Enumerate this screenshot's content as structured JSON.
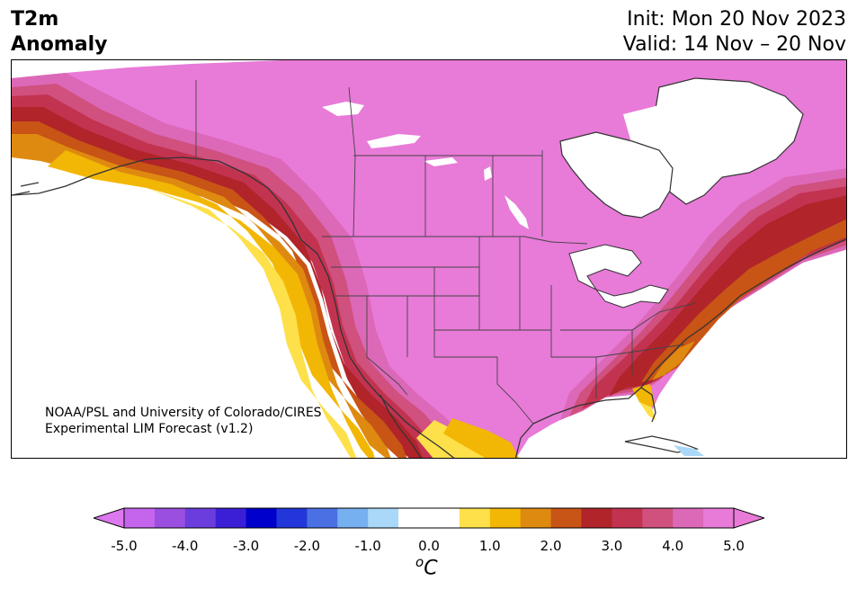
{
  "header": {
    "title_line1": "T2m",
    "title_line2": "Anomaly",
    "init": "Init: Mon 20 Nov 2023",
    "valid": "Valid: 14 Nov – 20 Nov"
  },
  "map": {
    "credit_line1": "NOAA/PSL and University of Colorado/CIRES",
    "credit_line2": "Experimental LIM Forecast (v1.2)",
    "region": "North America"
  },
  "colorbar": {
    "tick_labels": [
      "-5.0",
      "-4.0",
      "-3.0",
      "-2.0",
      "-1.0",
      "0.0",
      "1.0",
      "2.0",
      "3.0",
      "4.0",
      "5.0"
    ],
    "unit_super": "o",
    "unit_main": "C",
    "bins": [
      {
        "lo": -5.0,
        "hi": -4.5,
        "color": "#c565ee"
      },
      {
        "lo": -4.5,
        "hi": -4.0,
        "color": "#9b4fe0"
      },
      {
        "lo": -4.0,
        "hi": -3.5,
        "color": "#6a3ddc"
      },
      {
        "lo": -3.5,
        "hi": -3.0,
        "color": "#3a1fd6"
      },
      {
        "lo": -3.0,
        "hi": -2.5,
        "color": "#0000cd"
      },
      {
        "lo": -2.5,
        "hi": -2.0,
        "color": "#2236d9"
      },
      {
        "lo": -2.0,
        "hi": -1.5,
        "color": "#4a70e4"
      },
      {
        "lo": -1.5,
        "hi": -1.0,
        "color": "#77b0f0"
      },
      {
        "lo": -1.0,
        "hi": -0.5,
        "color": "#aad8f8"
      },
      {
        "lo": -0.5,
        "hi": 0.0,
        "color": "#ffffff"
      },
      {
        "lo": 0.0,
        "hi": 0.5,
        "color": "#ffffff"
      },
      {
        "lo": 0.5,
        "hi": 1.0,
        "color": "#fde04a"
      },
      {
        "lo": 1.0,
        "hi": 1.5,
        "color": "#f2b705"
      },
      {
        "lo": 1.5,
        "hi": 2.0,
        "color": "#de8a10"
      },
      {
        "lo": 2.0,
        "hi": 2.5,
        "color": "#c85416"
      },
      {
        "lo": 2.5,
        "hi": 3.0,
        "color": "#b0242a"
      },
      {
        "lo": 3.0,
        "hi": 3.5,
        "color": "#c23350"
      },
      {
        "lo": 3.5,
        "hi": 4.0,
        "color": "#d0507e"
      },
      {
        "lo": 4.0,
        "hi": 4.5,
        "color": "#dc68b8"
      },
      {
        "lo": 4.5,
        "hi": 5.0,
        "color": "#e87ad8"
      }
    ],
    "under_color": "#dd77ee",
    "over_color": "#e87ad8"
  }
}
